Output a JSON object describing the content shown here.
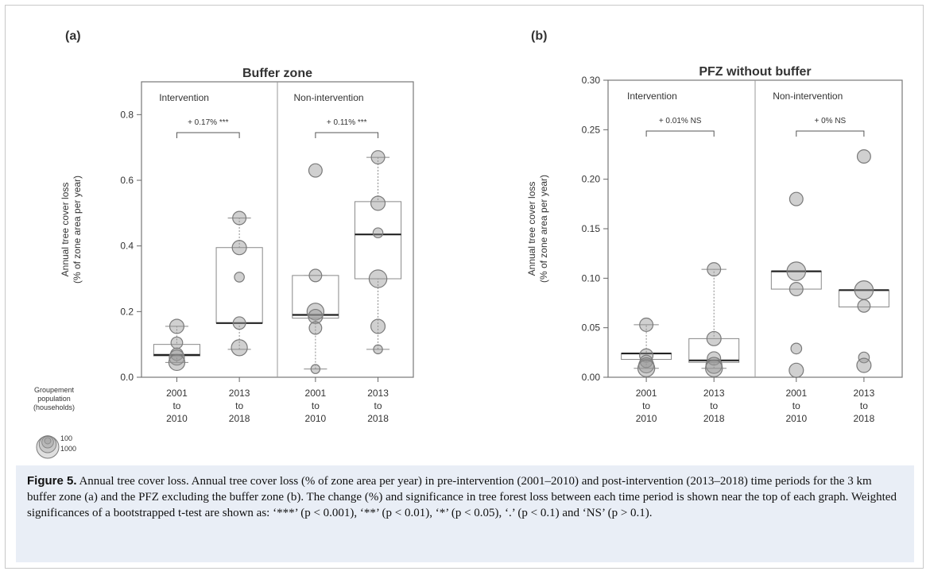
{
  "figure_caption": {
    "label": "Figure 5.",
    "text": " Annual tree cover loss. Annual tree cover loss (% of zone area per year) in pre-intervention (2001–2010) and post-intervention (2013–2018) time periods for the 3 km buffer zone (a) and the PFZ excluding the buffer zone (b). The change (%) and significance in tree forest loss between each time period is shown near the top of each graph. Weighted significances of a bootstrapped t-test are shown as: ‘***’ (p < 0.001), ‘**’ (p < 0.01), ‘*’ (p < 0.05), ‘.’ (p < 0.1) and ‘NS’ (p > 0.1)."
  },
  "ylabel": [
    "Annual tree cover loss",
    "(% of zone area per year)"
  ],
  "size_legend": {
    "title": [
      "Groupement",
      "population",
      "(households)"
    ],
    "entries": [
      {
        "label": "100",
        "households": 100
      },
      {
        "label": "",
        "households": 400
      },
      {
        "label": "",
        "households": 700
      },
      {
        "label": "1000",
        "households": 1000
      }
    ]
  },
  "chart_data": [
    {
      "type": "boxplot",
      "panel_label": "(a)",
      "title": "Buffer zone",
      "ylim": [
        0,
        0.9
      ],
      "yticks": [
        0.0,
        0.2,
        0.4,
        0.6,
        0.8
      ],
      "ytick_labels": [
        "0.0",
        "0.2",
        "0.4",
        "0.6",
        "0.8"
      ],
      "groups": [
        {
          "name": "Intervention",
          "annotation": "+ 0.17%  ***",
          "periods": [
            {
              "label": [
                "2001",
                "to",
                "2010"
              ],
              "q1": 0.065,
              "median": 0.068,
              "q3": 0.1,
              "whisker_low": 0.045,
              "whisker_high": 0.155,
              "points": [
                {
                  "y": 0.155,
                  "size": 0.45
                },
                {
                  "y": 0.105,
                  "size": 0.3
                },
                {
                  "y": 0.07,
                  "size": 0.35
                },
                {
                  "y": 0.06,
                  "size": 0.5
                },
                {
                  "y": 0.045,
                  "size": 0.55
                }
              ]
            },
            {
              "label": [
                "2013",
                "to",
                "2018"
              ],
              "q1": 0.165,
              "median": 0.165,
              "q3": 0.395,
              "whisker_low": 0.085,
              "whisker_high": 0.485,
              "points": [
                {
                  "y": 0.485,
                  "size": 0.4
                },
                {
                  "y": 0.395,
                  "size": 0.45
                },
                {
                  "y": 0.305,
                  "size": 0.2
                },
                {
                  "y": 0.165,
                  "size": 0.35
                },
                {
                  "y": 0.09,
                  "size": 0.55
                }
              ]
            }
          ]
        },
        {
          "name": "Non-intervention",
          "annotation": "+ 0.11%  ***",
          "periods": [
            {
              "label": [
                "2001",
                "to",
                "2010"
              ],
              "q1": 0.18,
              "median": 0.19,
              "q3": 0.31,
              "whisker_low": 0.025,
              "whisker_high": 0.31,
              "points": [
                {
                  "y": 0.63,
                  "size": 0.4
                },
                {
                  "y": 0.31,
                  "size": 0.35
                },
                {
                  "y": 0.2,
                  "size": 0.6
                },
                {
                  "y": 0.185,
                  "size": 0.45
                },
                {
                  "y": 0.15,
                  "size": 0.35
                },
                {
                  "y": 0.025,
                  "size": 0.15
                }
              ]
            },
            {
              "label": [
                "2013",
                "to",
                "2018"
              ],
              "q1": 0.3,
              "median": 0.435,
              "q3": 0.535,
              "whisker_low": 0.085,
              "whisker_high": 0.67,
              "points": [
                {
                  "y": 0.67,
                  "size": 0.4
                },
                {
                  "y": 0.53,
                  "size": 0.45
                },
                {
                  "y": 0.44,
                  "size": 0.2
                },
                {
                  "y": 0.3,
                  "size": 0.65
                },
                {
                  "y": 0.155,
                  "size": 0.45
                },
                {
                  "y": 0.085,
                  "size": 0.15
                }
              ]
            }
          ]
        }
      ]
    },
    {
      "type": "boxplot",
      "panel_label": "(b)",
      "title": "PFZ without buffer",
      "ylim": [
        0,
        0.3
      ],
      "yticks": [
        0.0,
        0.05,
        0.1,
        0.15,
        0.2,
        0.25,
        0.3
      ],
      "ytick_labels": [
        "0.00",
        "0.05",
        "0.10",
        "0.15",
        "0.20",
        "0.25",
        "0.30"
      ],
      "groups": [
        {
          "name": "Intervention",
          "annotation": "+ 0.01%  NS",
          "periods": [
            {
              "label": [
                "2001",
                "to",
                "2010"
              ],
              "q1": 0.018,
              "median": 0.024,
              "q3": 0.024,
              "whisker_low": 0.009,
              "whisker_high": 0.053,
              "points": [
                {
                  "y": 0.053,
                  "size": 0.4
                },
                {
                  "y": 0.022,
                  "size": 0.4
                },
                {
                  "y": 0.016,
                  "size": 0.35
                },
                {
                  "y": 0.012,
                  "size": 0.5
                },
                {
                  "y": 0.009,
                  "size": 0.6
                }
              ]
            },
            {
              "label": [
                "2013",
                "to",
                "2018"
              ],
              "q1": 0.015,
              "median": 0.017,
              "q3": 0.039,
              "whisker_low": 0.009,
              "whisker_high": 0.109,
              "points": [
                {
                  "y": 0.109,
                  "size": 0.4
                },
                {
                  "y": 0.039,
                  "size": 0.45
                },
                {
                  "y": 0.019,
                  "size": 0.4
                },
                {
                  "y": 0.012,
                  "size": 0.55
                },
                {
                  "y": 0.009,
                  "size": 0.6
                }
              ]
            }
          ]
        },
        {
          "name": "Non-intervention",
          "annotation": "+ 0%  NS",
          "periods": [
            {
              "label": [
                "2001",
                "to",
                "2010"
              ],
              "q1": 0.089,
              "median": 0.107,
              "q3": 0.107,
              "whisker_low": 0.089,
              "whisker_high": 0.107,
              "points": [
                {
                  "y": 0.18,
                  "size": 0.4
                },
                {
                  "y": 0.107,
                  "size": 0.7
                },
                {
                  "y": 0.089,
                  "size": 0.4
                },
                {
                  "y": 0.029,
                  "size": 0.25
                },
                {
                  "y": 0.007,
                  "size": 0.45
                }
              ]
            },
            {
              "label": [
                "2013",
                "to",
                "2018"
              ],
              "q1": 0.071,
              "median": 0.088,
              "q3": 0.088,
              "whisker_low": 0.071,
              "whisker_high": 0.088,
              "points": [
                {
                  "y": 0.223,
                  "size": 0.4
                },
                {
                  "y": 0.088,
                  "size": 0.7
                },
                {
                  "y": 0.072,
                  "size": 0.35
                },
                {
                  "y": 0.02,
                  "size": 0.25
                },
                {
                  "y": 0.012,
                  "size": 0.45
                }
              ]
            }
          ]
        }
      ]
    }
  ]
}
